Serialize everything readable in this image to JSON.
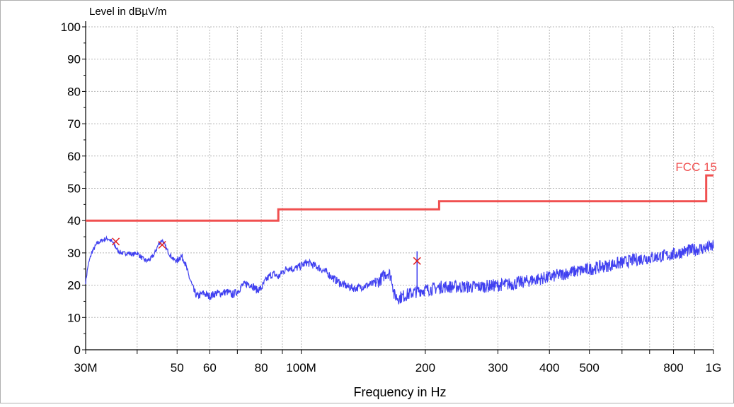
{
  "chart_data": {
    "type": "line",
    "title": "",
    "xlabel": "Frequency in Hz",
    "ylabel": "Level in dBµV/m",
    "xscale": "log",
    "xlim": [
      30000000,
      1000000000
    ],
    "ylim": [
      0,
      100
    ],
    "grid": true,
    "y_ticks": [
      0,
      10,
      20,
      30,
      40,
      50,
      60,
      70,
      80,
      90,
      100
    ],
    "x_ticks": [
      {
        "value": 30000000,
        "label": "30M"
      },
      {
        "value": 50000000,
        "label": "50"
      },
      {
        "value": 60000000,
        "label": "60"
      },
      {
        "value": 80000000,
        "label": "80"
      },
      {
        "value": 100000000,
        "label": "100M"
      },
      {
        "value": 200000000,
        "label": "200"
      },
      {
        "value": 300000000,
        "label": "300"
      },
      {
        "value": 400000000,
        "label": "400"
      },
      {
        "value": 500000000,
        "label": "500"
      },
      {
        "value": 800000000,
        "label": "800"
      },
      {
        "value": 1000000000,
        "label": "1G"
      }
    ],
    "x_minor_ticks": [
      40000000,
      70000000,
      90000000,
      600000000,
      700000000,
      900000000
    ],
    "series": [
      {
        "name": "",
        "color": "#4040f0",
        "points": [
          [
            30000000,
            21
          ],
          [
            30400000,
            26
          ],
          [
            31000000,
            30
          ],
          [
            32000000,
            33
          ],
          [
            33000000,
            34
          ],
          [
            34000000,
            34.5
          ],
          [
            35000000,
            33
          ],
          [
            36000000,
            30.5
          ],
          [
            37000000,
            29.8
          ],
          [
            38000000,
            30
          ],
          [
            39000000,
            29.5
          ],
          [
            40000000,
            30
          ],
          [
            41000000,
            28.5
          ],
          [
            42000000,
            27.5
          ],
          [
            43000000,
            28
          ],
          [
            44000000,
            29.5
          ],
          [
            45000000,
            32.5
          ],
          [
            46000000,
            34
          ],
          [
            47000000,
            31.5
          ],
          [
            48000000,
            29.5
          ],
          [
            49000000,
            28
          ],
          [
            50000000,
            27.5
          ],
          [
            51000000,
            29
          ],
          [
            52000000,
            28
          ],
          [
            53000000,
            24
          ],
          [
            54000000,
            21
          ],
          [
            55000000,
            18
          ],
          [
            56000000,
            16.5
          ],
          [
            58000000,
            17.5
          ],
          [
            60000000,
            16.5
          ],
          [
            62000000,
            17.5
          ],
          [
            64000000,
            17.5
          ],
          [
            66000000,
            18
          ],
          [
            68000000,
            17
          ],
          [
            70000000,
            18
          ],
          [
            72000000,
            20
          ],
          [
            74000000,
            20.5
          ],
          [
            76000000,
            20
          ],
          [
            78000000,
            18.5
          ],
          [
            80000000,
            19
          ],
          [
            82000000,
            21.5
          ],
          [
            84000000,
            23
          ],
          [
            86000000,
            23.5
          ],
          [
            88000000,
            22.5
          ],
          [
            90000000,
            24
          ],
          [
            93000000,
            25.5
          ],
          [
            96000000,
            25
          ],
          [
            100000000,
            26
          ],
          [
            103000000,
            27
          ],
          [
            106000000,
            26.5
          ],
          [
            110000000,
            25.5
          ],
          [
            115000000,
            24
          ],
          [
            120000000,
            22
          ],
          [
            125000000,
            20.5
          ],
          [
            130000000,
            19.5
          ],
          [
            135000000,
            19
          ],
          [
            140000000,
            19.5
          ],
          [
            145000000,
            20
          ],
          [
            150000000,
            20.5
          ],
          [
            155000000,
            21.5
          ],
          [
            160000000,
            23.5
          ],
          [
            163000000,
            24
          ],
          [
            166000000,
            22
          ],
          [
            168000000,
            17
          ],
          [
            172000000,
            16
          ],
          [
            176000000,
            16.5
          ],
          [
            180000000,
            17
          ],
          [
            185000000,
            17.5
          ],
          [
            190000000,
            18
          ],
          [
            195000000,
            18.5
          ],
          [
            200000000,
            18.5
          ],
          [
            210000000,
            19
          ],
          [
            220000000,
            19.5
          ],
          [
            235000000,
            19.5
          ],
          [
            250000000,
            19.5
          ],
          [
            270000000,
            19.5
          ],
          [
            300000000,
            20
          ],
          [
            330000000,
            20.5
          ],
          [
            360000000,
            21.5
          ],
          [
            400000000,
            22.5
          ],
          [
            450000000,
            24
          ],
          [
            500000000,
            25
          ],
          [
            550000000,
            26
          ],
          [
            600000000,
            27
          ],
          [
            650000000,
            28
          ],
          [
            700000000,
            28.5
          ],
          [
            750000000,
            29
          ],
          [
            800000000,
            29.5
          ],
          [
            850000000,
            30.5
          ],
          [
            900000000,
            31
          ],
          [
            950000000,
            31.5
          ],
          [
            1000000000,
            32
          ]
        ]
      },
      {
        "name": "FCC 15",
        "color": "#f05050",
        "points": [
          [
            30000000,
            40
          ],
          [
            88000000,
            40
          ],
          [
            88000000,
            43.5
          ],
          [
            216000000,
            43.5
          ],
          [
            216000000,
            46
          ],
          [
            960000000,
            46
          ],
          [
            960000000,
            54
          ],
          [
            1000000000,
            54
          ]
        ]
      }
    ],
    "spike": {
      "x": 191000000,
      "y_low": 19,
      "y_high": 30.5,
      "color": "#4040f0"
    },
    "markers": [
      {
        "x": 35500000,
        "y": 33.5
      },
      {
        "x": 46000000,
        "y": 32.5
      },
      {
        "x": 191000000,
        "y": 27.5
      }
    ],
    "marker_color": "#e02020",
    "limit_label": "FCC 15",
    "colors": {
      "frame": "#b0b0b0",
      "grid": "#b8b8b8",
      "axis": "#000000"
    }
  }
}
